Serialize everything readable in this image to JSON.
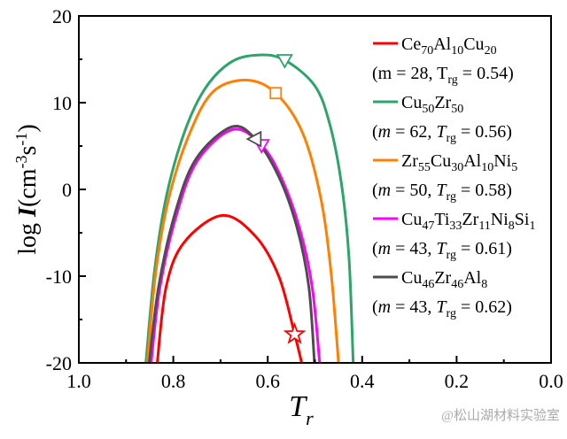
{
  "chart_data": {
    "type": "line",
    "xlabel": "T",
    "xlabel_sub": "r",
    "ylabel_prefix": "log ",
    "ylabel_var": "I",
    "ylabel_unit": "(cm",
    "ylabel_exp1": "-3",
    "ylabel_mid": "s",
    "ylabel_exp2": "-1",
    "ylabel_close": ")",
    "xlim": [
      1.0,
      0.0
    ],
    "ylim": [
      -20,
      20
    ],
    "x_reversed": true,
    "x_ticks": [
      "1.0",
      "0.8",
      "0.6",
      "0.4",
      "0.2",
      "0.0"
    ],
    "y_ticks": [
      "20",
      "10",
      "0",
      "-10",
      "-20"
    ],
    "grid": false,
    "legend_position": "top-right",
    "series": [
      {
        "name_parts": [
          [
            "Ce",
            ""
          ],
          [
            "70",
            "sub"
          ],
          [
            "Al",
            ""
          ],
          [
            "10",
            "sub"
          ],
          [
            "Cu",
            ""
          ],
          [
            "20",
            "sub"
          ]
        ],
        "m_label": "(m = 28, T",
        "params": {
          "m": "28",
          "Trg": "0.54"
        },
        "color": "#ff0000",
        "marker": "star",
        "marker_point": [
          0.543,
          -16.7
        ],
        "points": [
          [
            0.834,
            -20
          ],
          [
            0.815,
            -11.2
          ],
          [
            0.777,
            -6.1
          ],
          [
            0.696,
            -3.0
          ],
          [
            0.626,
            -5.4
          ],
          [
            0.576,
            -10.1
          ],
          [
            0.543,
            -16.7
          ],
          [
            0.528,
            -20
          ]
        ]
      },
      {
        "name_parts": [
          [
            "Cu",
            ""
          ],
          [
            "50",
            "sub"
          ],
          [
            "Zr",
            ""
          ],
          [
            "50",
            "sub"
          ]
        ],
        "params": {
          "m": "62",
          "Trg": "0.56"
        },
        "color": "#2ca56a",
        "marker": "triangle-down",
        "marker_point": [
          0.564,
          14.9
        ],
        "points": [
          [
            0.858,
            -20
          ],
          [
            0.84,
            -9.5
          ],
          [
            0.815,
            -0.9
          ],
          [
            0.777,
            6.5
          ],
          [
            0.733,
            11.6
          ],
          [
            0.677,
            14.7
          ],
          [
            0.617,
            15.5
          ],
          [
            0.564,
            14.9
          ],
          [
            0.501,
            12.0
          ],
          [
            0.469,
            7.6
          ],
          [
            0.444,
            0.7
          ],
          [
            0.428,
            -7.8
          ],
          [
            0.419,
            -20
          ]
        ]
      },
      {
        "name_parts": [
          [
            "Zr",
            ""
          ],
          [
            "55",
            "sub"
          ],
          [
            "Cu",
            ""
          ],
          [
            "30",
            "sub"
          ],
          [
            "Al",
            ""
          ],
          [
            "10",
            "sub"
          ],
          [
            "Ni",
            ""
          ],
          [
            "5",
            "sub"
          ]
        ],
        "params": {
          "m": "50",
          "Trg": "0.58"
        },
        "color": "#ff8000",
        "marker": "square",
        "marker_point": [
          0.583,
          11.1
        ],
        "points": [
          [
            0.855,
            -20
          ],
          [
            0.837,
            -9.5
          ],
          [
            0.809,
            -0.9
          ],
          [
            0.765,
            6.5
          ],
          [
            0.715,
            11.3
          ],
          [
            0.645,
            12.6
          ],
          [
            0.583,
            11.1
          ],
          [
            0.526,
            6.5
          ],
          [
            0.488,
            -0.9
          ],
          [
            0.466,
            -9.5
          ],
          [
            0.45,
            -20
          ]
        ]
      },
      {
        "name_parts": [
          [
            "Cu",
            ""
          ],
          [
            "47",
            "sub"
          ],
          [
            "Ti",
            ""
          ],
          [
            "33",
            "sub"
          ],
          [
            "Zr",
            ""
          ],
          [
            "11",
            "sub"
          ],
          [
            "Ni",
            ""
          ],
          [
            "8",
            "sub"
          ],
          [
            "Si",
            ""
          ],
          [
            "1",
            "sub"
          ]
        ],
        "params": {
          "m": "43",
          "Trg": "0.61"
        },
        "color": "#ff00ff",
        "marker": "triangle-down",
        "marker_point": [
          0.613,
          5.1
        ],
        "points": [
          [
            0.847,
            -20
          ],
          [
            0.828,
            -11.2
          ],
          [
            0.793,
            -2.9
          ],
          [
            0.749,
            3.3
          ],
          [
            0.674,
            6.9
          ],
          [
            0.613,
            5.1
          ],
          [
            0.57,
            1.2
          ],
          [
            0.532,
            -4.6
          ],
          [
            0.506,
            -11.2
          ],
          [
            0.49,
            -20
          ]
        ]
      },
      {
        "name_parts": [
          [
            "Cu",
            ""
          ],
          [
            "46",
            "sub"
          ],
          [
            "Zr",
            ""
          ],
          [
            "46",
            "sub"
          ],
          [
            "Al",
            ""
          ],
          [
            "8",
            "sub"
          ]
        ],
        "params": {
          "m": "43",
          "Trg": "0.62"
        },
        "color": "#4d4d4d",
        "marker": "triangle-left",
        "marker_point": [
          0.626,
          5.8
        ],
        "points": [
          [
            0.851,
            -20
          ],
          [
            0.831,
            -11.2
          ],
          [
            0.796,
            -2.7
          ],
          [
            0.752,
            3.5
          ],
          [
            0.677,
            7.2
          ],
          [
            0.626,
            5.8
          ],
          [
            0.576,
            1.4
          ],
          [
            0.538,
            -4.4
          ],
          [
            0.513,
            -11.2
          ],
          [
            0.501,
            -20
          ]
        ]
      }
    ],
    "param_labels": {
      "m": "m",
      "eq": " = ",
      "T": "T",
      "Tsub": "rg",
      "open": "(",
      "close": ")",
      "sep": ", "
    }
  },
  "watermark": "@松山湖材料实验室"
}
